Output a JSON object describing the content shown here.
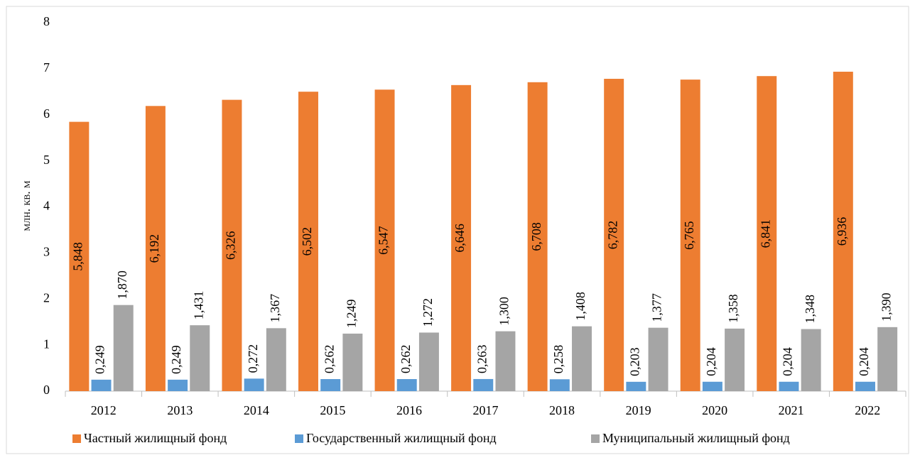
{
  "chart_data": {
    "type": "bar",
    "y_label": "млн. кв. м",
    "categories": [
      "2012",
      "2013",
      "2014",
      "2015",
      "2016",
      "2017",
      "2018",
      "2019",
      "2020",
      "2021",
      "2022"
    ],
    "series": [
      {
        "name": "Частный жилищный фонд",
        "color": "#ed7d31",
        "values": [
          5.848,
          6.192,
          6.326,
          6.502,
          6.547,
          6.646,
          6.708,
          6.782,
          6.765,
          6.841,
          6.936
        ],
        "value_labels": [
          "5,848",
          "6,192",
          "6,326",
          "6,502",
          "6,547",
          "6,646",
          "6,708",
          "6,782",
          "6,765",
          "6,841",
          "6,936"
        ]
      },
      {
        "name": "Государственный жилищный фонд",
        "color": "#5b9bd5",
        "values": [
          0.249,
          0.249,
          0.272,
          0.262,
          0.262,
          0.263,
          0.258,
          0.203,
          0.204,
          0.204,
          0.204
        ],
        "value_labels": [
          "0,249",
          "0,249",
          "0,272",
          "0,262",
          "0,262",
          "0,263",
          "0,258",
          "0,203",
          "0,204",
          "0,204",
          "0,204"
        ]
      },
      {
        "name": "Муниципальный жилищный фонд",
        "color": "#a5a5a5",
        "values": [
          1.87,
          1.431,
          1.367,
          1.249,
          1.272,
          1.3,
          1.408,
          1.377,
          1.358,
          1.348,
          1.39
        ],
        "value_labels": [
          "1,870",
          "1,431",
          "1,367",
          "1,249",
          "1,272",
          "1,300",
          "1,408",
          "1,377",
          "1,358",
          "1,348",
          "1,390"
        ]
      }
    ],
    "ylim": [
      0,
      8
    ],
    "yticks": [
      0,
      1,
      2,
      3,
      4,
      5,
      6,
      7,
      8
    ],
    "grid": false,
    "legend": "bottom"
  }
}
